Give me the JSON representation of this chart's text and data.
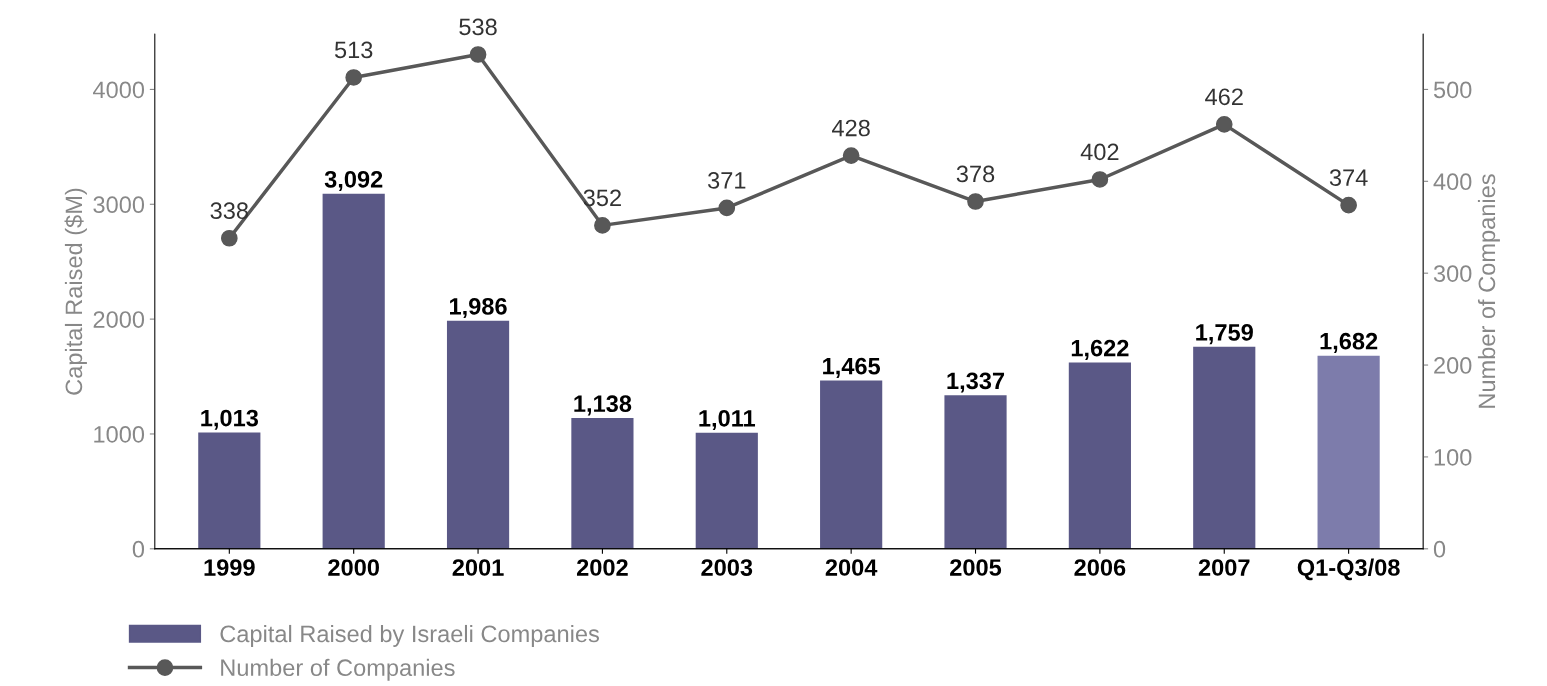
{
  "chart_data": {
    "type": "bar",
    "ylabel": "Capital Raised ($M)",
    "y2label": "Number of Companies",
    "categories": [
      "1999",
      "2000",
      "2001",
      "2002",
      "2003",
      "2004",
      "2005",
      "2006",
      "2007",
      "Q1-Q3/08"
    ],
    "series": [
      {
        "name": "Capital Raised by Israeli Companies",
        "color": "#5a5886",
        "colors": [
          "#5a5886",
          "#5a5886",
          "#5a5886",
          "#5a5886",
          "#5a5886",
          "#5a5886",
          "#5a5886",
          "#5a5886",
          "#5a5886",
          "#7d7cab"
        ],
        "values": [
          1013,
          3092,
          1986,
          1138,
          1011,
          1465,
          1337,
          1622,
          1759,
          1682
        ],
        "value_labels": [
          "1,013",
          "3,092",
          "1,986",
          "1,138",
          "1,011",
          "1,465",
          "1,337",
          "1,622",
          "1,759",
          "1,682"
        ]
      },
      {
        "name": "Number of Companies",
        "type": "line",
        "axis": "y2",
        "color": "#585858",
        "values": [
          338,
          513,
          538,
          352,
          371,
          428,
          378,
          402,
          462,
          374
        ],
        "value_labels": [
          "338",
          "513",
          "538",
          "352",
          "371",
          "428",
          "378",
          "402",
          "462",
          "374"
        ]
      }
    ],
    "ylim": [
      0,
      4480
    ],
    "yticks": [
      0,
      1000,
      2000,
      3000,
      4000
    ],
    "y2lim": [
      0,
      560
    ],
    "y2ticks": [
      0,
      100,
      200,
      300,
      400,
      500
    ],
    "marker": "circle",
    "line_style": "solid",
    "grid": false,
    "legend": "bottom left"
  }
}
